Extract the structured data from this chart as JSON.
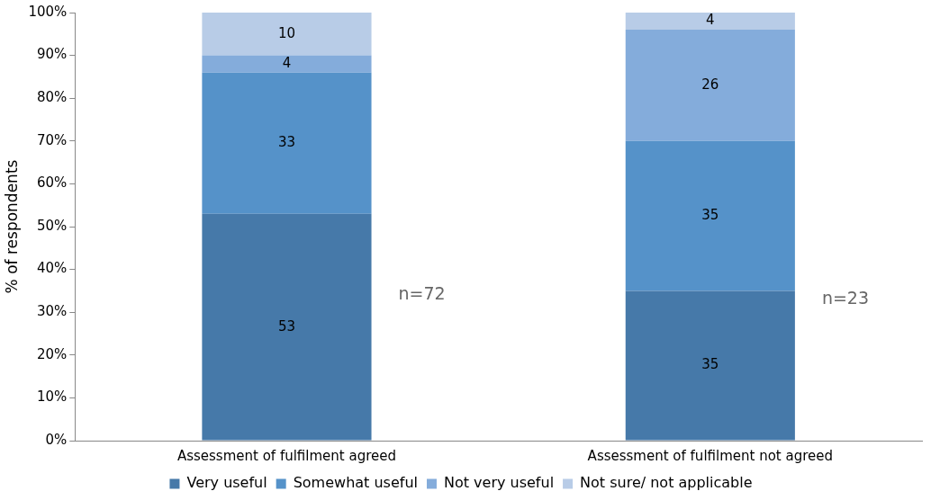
{
  "chart_data": {
    "type": "bar",
    "stacked": true,
    "ylabel": "% of respondents",
    "categories": [
      "Assessment of fulfilment agreed",
      "Assessment of fulfilment not agreed"
    ],
    "series": [
      {
        "name": "Very useful",
        "color": "#4679a9",
        "values": [
          53,
          35
        ]
      },
      {
        "name": "Somewhat useful",
        "color": "#5592c9",
        "values": [
          33,
          35
        ]
      },
      {
        "name": "Not very useful",
        "color": "#84acdb",
        "values": [
          4,
          26
        ]
      },
      {
        "name": "Not sure/ not applicable",
        "color": "#b8cce7",
        "values": [
          10,
          4
        ]
      }
    ],
    "ylim": [
      0,
      100
    ],
    "yticks": [
      {
        "value": 0,
        "label": "0%"
      },
      {
        "value": 10,
        "label": "10%"
      },
      {
        "value": 20,
        "label": "20%"
      },
      {
        "value": 30,
        "label": "30%"
      },
      {
        "value": 40,
        "label": "40%"
      },
      {
        "value": 50,
        "label": "50%"
      },
      {
        "value": 60,
        "label": "60%"
      },
      {
        "value": 70,
        "label": "70%"
      },
      {
        "value": 80,
        "label": "80%"
      },
      {
        "value": 90,
        "label": "90%"
      },
      {
        "value": 100,
        "label": "100%"
      }
    ],
    "grid": false,
    "legend": "bottom",
    "data_labels": true,
    "annotations": [
      "n=72",
      "n=23"
    ]
  }
}
